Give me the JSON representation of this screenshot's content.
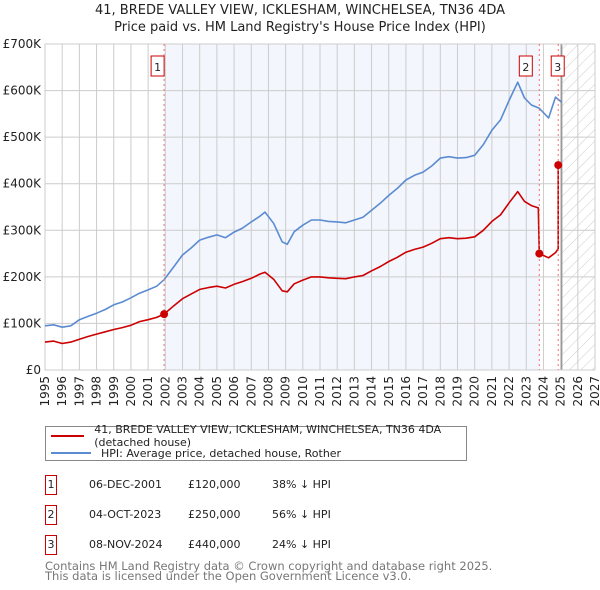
{
  "chart_data": {
    "type": "line",
    "title": "41, BREDE VALLEY VIEW, ICKLESHAM, WINCHELSEA, TN36 4DA",
    "subtitle": "Price paid vs. HM Land Registry's House Price Index (HPI)",
    "xlim": [
      1995,
      2027
    ],
    "ylim": [
      0,
      700000
    ],
    "x_ticks": [
      "1995",
      "1996",
      "1997",
      "1998",
      "1999",
      "2000",
      "2001",
      "2002",
      "2003",
      "2004",
      "2005",
      "2006",
      "2007",
      "2008",
      "2009",
      "2010",
      "2011",
      "2012",
      "2013",
      "2014",
      "2015",
      "2016",
      "2017",
      "2018",
      "2019",
      "2020",
      "2021",
      "2022",
      "2023",
      "2024",
      "2025",
      "2026",
      "2027"
    ],
    "y_ticks": [
      {
        "value": 0,
        "label": "£0"
      },
      {
        "value": 100000,
        "label": "£100K"
      },
      {
        "value": 200000,
        "label": "£200K"
      },
      {
        "value": 300000,
        "label": "£300K"
      },
      {
        "value": 400000,
        "label": "£400K"
      },
      {
        "value": 500000,
        "label": "£500K"
      },
      {
        "value": 600000,
        "label": "£600K"
      },
      {
        "value": 700000,
        "label": "£700K"
      }
    ],
    "grid": true,
    "forecast_start": 2025.06,
    "series": [
      {
        "name": "41, BREDE VALLEY VIEW, ICKLESHAM, WINCHELSEA, TN36 4DA (detached house)",
        "color": "#cc0000",
        "x": [
          1995,
          1995.5,
          1996,
          1996.5,
          1997,
          1997.5,
          1998,
          1998.5,
          1999,
          1999.5,
          2000,
          2000.5,
          2001,
          2001.5,
          2001.93,
          2002.5,
          2003,
          2003.5,
          2004,
          2004.5,
          2005,
          2005.5,
          2006,
          2006.5,
          2007,
          2007.5,
          2007.8,
          2008.3,
          2008.8,
          2009.1,
          2009.5,
          2010,
          2010.5,
          2011,
          2011.5,
          2012,
          2012.5,
          2013,
          2013.5,
          2014,
          2014.5,
          2015,
          2015.5,
          2016,
          2016.5,
          2017,
          2017.5,
          2018,
          2018.5,
          2019,
          2019.5,
          2020,
          2020.5,
          2021,
          2021.5,
          2022,
          2022.5,
          2022.9,
          2023.3,
          2023.7,
          2023.76,
          2024.3,
          2024.7,
          2024.86,
          2024.86
        ],
        "y": [
          60000,
          62000,
          57000,
          60000,
          66000,
          72000,
          77000,
          82000,
          87000,
          91000,
          96000,
          104000,
          108000,
          113000,
          120000,
          138000,
          153000,
          163000,
          173000,
          177000,
          180000,
          176000,
          184000,
          190000,
          197000,
          206000,
          210000,
          195000,
          170000,
          168000,
          185000,
          193000,
          200000,
          200000,
          198000,
          197000,
          196000,
          200000,
          203000,
          213000,
          222000,
          233000,
          242000,
          253000,
          259000,
          264000,
          272000,
          282000,
          284000,
          282000,
          283000,
          286000,
          300000,
          319000,
          333000,
          359000,
          383000,
          362000,
          353000,
          348000,
          250000,
          241000,
          252000,
          260000,
          440000
        ]
      },
      {
        "name": "HPI: Average price, detached house, Rother",
        "color": "#5b8bd0",
        "x": [
          1995,
          1995.5,
          1996,
          1996.5,
          1997,
          1997.5,
          1998,
          1998.5,
          1999,
          1999.5,
          2000,
          2000.5,
          2001,
          2001.5,
          2001.93,
          2002.5,
          2003,
          2003.5,
          2004,
          2004.5,
          2005,
          2005.5,
          2006,
          2006.5,
          2007,
          2007.5,
          2007.8,
          2008.3,
          2008.8,
          2009.1,
          2009.5,
          2010,
          2010.5,
          2011,
          2011.5,
          2012,
          2012.5,
          2013,
          2013.5,
          2014,
          2014.5,
          2015,
          2015.5,
          2016,
          2016.5,
          2017,
          2017.5,
          2018,
          2018.5,
          2019,
          2019.5,
          2020,
          2020.5,
          2021,
          2021.5,
          2022,
          2022.5,
          2022.9,
          2023.3,
          2023.76,
          2024.3,
          2024.7,
          2025.06
        ],
        "y": [
          95000,
          97000,
          92000,
          95000,
          108000,
          115000,
          122000,
          130000,
          140000,
          146000,
          155000,
          165000,
          172000,
          180000,
          194000,
          222000,
          247000,
          262000,
          279000,
          285000,
          290000,
          284000,
          296000,
          305000,
          318000,
          330000,
          339000,
          315000,
          275000,
          270000,
          297000,
          311000,
          322000,
          322000,
          319000,
          318000,
          316000,
          322000,
          328000,
          343000,
          358000,
          375000,
          390000,
          408000,
          418000,
          425000,
          438000,
          455000,
          458000,
          455000,
          456000,
          461000,
          484000,
          515000,
          537000,
          579000,
          618000,
          584000,
          569000,
          562000,
          541000,
          586000,
          575000
        ]
      }
    ],
    "sales": [
      {
        "num": "1",
        "x": 2001.93,
        "value": 120000,
        "date": "06-DEC-2001",
        "price": "£120,000",
        "hpi": "38% ↓ HPI"
      },
      {
        "num": "2",
        "x": 2023.76,
        "value": 250000,
        "date": "04-OCT-2023",
        "price": "£250,000",
        "hpi": "56% ↓ HPI"
      },
      {
        "num": "3",
        "x": 2024.86,
        "value": 440000,
        "date": "08-NOV-2024",
        "price": "£440,000",
        "hpi": "24% ↓ HPI"
      }
    ]
  },
  "footer": {
    "line1": "Contains HM Land Registry data © Crown copyright and database right 2025.",
    "line2": "This data is licensed under the Open Government Licence v3.0."
  }
}
